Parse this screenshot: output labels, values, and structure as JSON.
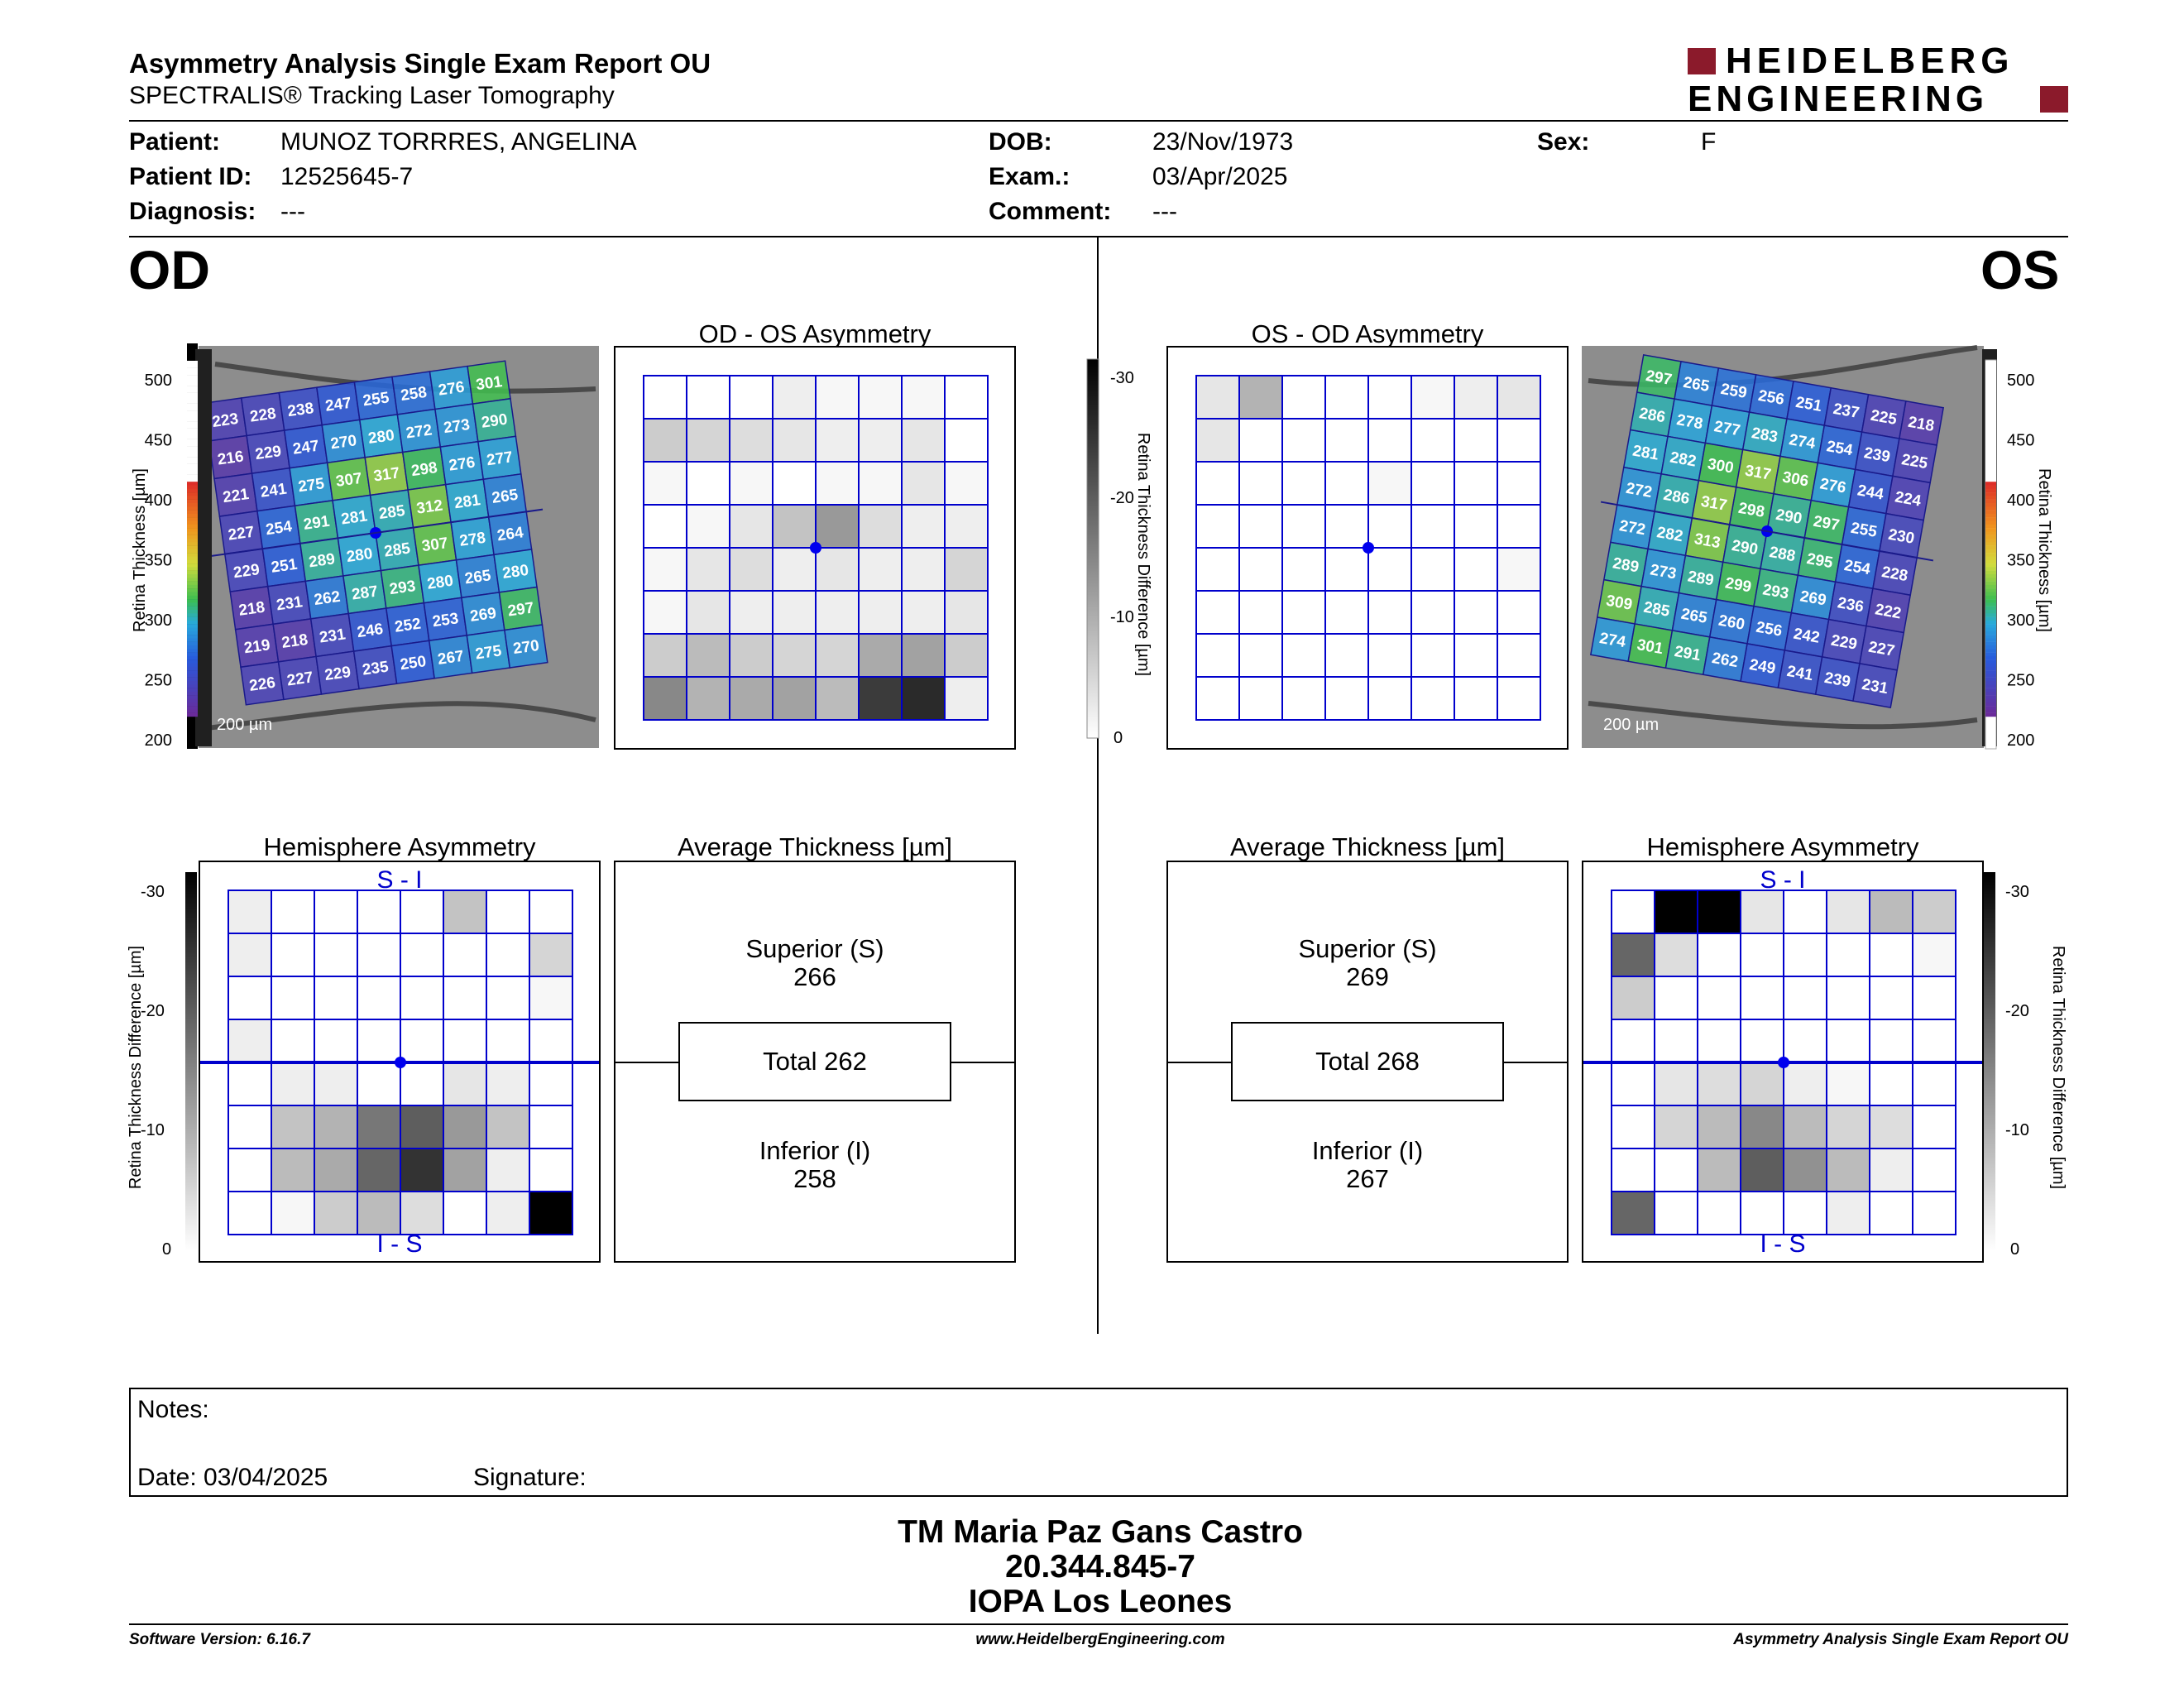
{
  "header": {
    "title": "Asymmetry Analysis Single Exam Report OU",
    "subtitle": "SPECTRALIS® Tracking Laser Tomography",
    "logo_line1": "HEIDELBERG",
    "logo_line2": "ENGINEERING",
    "brand_color": "#8b1a2b"
  },
  "patient": {
    "patient_label": "Patient:",
    "patient_value": "MUNOZ TORRRES, ANGELINA",
    "id_label": "Patient ID:",
    "id_value": "12525645-7",
    "diagnosis_label": "Diagnosis:",
    "diagnosis_value": "---",
    "dob_label": "DOB:",
    "dob_value": "23/Nov/1973",
    "exam_label": "Exam.:",
    "exam_value": "03/Apr/2025",
    "comment_label": "Comment:",
    "comment_value": "---",
    "sex_label": "Sex:",
    "sex_value": "F"
  },
  "od": {
    "eye_label": "OD",
    "asym_title": "OD - OS Asymmetry",
    "hemi_title": "Hemisphere Asymmetry",
    "avg_title": "Average Thickness [µm]",
    "scale_label": "200 µm",
    "superior_label": "Superior (S)",
    "superior_value": "266",
    "total_label": "Total 262",
    "inferior_label": "Inferior (I)",
    "inferior_value": "258",
    "si_label": "S - I",
    "is_label": "I - S",
    "thickness_grid": [
      [
        223,
        228,
        238,
        247,
        255,
        258,
        276,
        301
      ],
      [
        216,
        229,
        247,
        270,
        280,
        272,
        273,
        290
      ],
      [
        221,
        241,
        275,
        307,
        317,
        298,
        276,
        277
      ],
      [
        227,
        254,
        291,
        281,
        285,
        312,
        281,
        265
      ],
      [
        229,
        251,
        289,
        280,
        285,
        307,
        278,
        264
      ],
      [
        218,
        231,
        262,
        287,
        293,
        280,
        265,
        280
      ],
      [
        219,
        218,
        231,
        246,
        252,
        253,
        269,
        297
      ],
      [
        226,
        227,
        229,
        235,
        250,
        267,
        275,
        270
      ]
    ],
    "asym_grid": [
      [
        0,
        0,
        0,
        2,
        1,
        1,
        1,
        0
      ],
      [
        6,
        5,
        4,
        3,
        2,
        2,
        3,
        0
      ],
      [
        1,
        0,
        1,
        0,
        1,
        1,
        3,
        1
      ],
      [
        0,
        1,
        3,
        7,
        12,
        4,
        2,
        2
      ],
      [
        1,
        3,
        4,
        2,
        3,
        2,
        2,
        5
      ],
      [
        1,
        3,
        2,
        2,
        2,
        2,
        2,
        3
      ],
      [
        6,
        8,
        6,
        5,
        5,
        10,
        11,
        6
      ],
      [
        14,
        9,
        10,
        11,
        8,
        23,
        25,
        2
      ]
    ],
    "hemi_grid": [
      [
        2,
        0,
        0,
        0,
        0,
        7,
        0,
        0
      ],
      [
        2,
        0,
        0,
        0,
        0,
        0,
        0,
        5
      ],
      [
        0,
        0,
        0,
        0,
        0,
        0,
        0,
        1
      ],
      [
        2,
        0,
        0,
        0,
        0,
        0,
        0,
        0
      ],
      [
        0,
        2,
        2,
        0,
        0,
        3,
        2,
        0
      ],
      [
        0,
        7,
        9,
        16,
        19,
        12,
        7,
        0
      ],
      [
        0,
        8,
        10,
        18,
        24,
        11,
        2,
        0
      ],
      [
        0,
        1,
        6,
        8,
        4,
        0,
        2,
        30
      ]
    ]
  },
  "os": {
    "eye_label": "OS",
    "asym_title": "OS - OD Asymmetry",
    "hemi_title": "Hemisphere Asymmetry",
    "avg_title": "Average Thickness [µm]",
    "scale_label": "200 µm",
    "superior_label": "Superior (S)",
    "superior_value": "269",
    "total_label": "Total 268",
    "inferior_label": "Inferior (I)",
    "inferior_value": "267",
    "si_label": "S - I",
    "is_label": "I - S",
    "thickness_grid": [
      [
        297,
        265,
        259,
        256,
        251,
        237,
        225,
        218
      ],
      [
        286,
        278,
        277,
        283,
        274,
        254,
        239,
        225
      ],
      [
        281,
        282,
        300,
        317,
        306,
        276,
        244,
        224
      ],
      [
        272,
        286,
        317,
        298,
        290,
        297,
        255,
        230
      ],
      [
        272,
        282,
        313,
        290,
        288,
        295,
        254,
        228
      ],
      [
        289,
        273,
        289,
        299,
        293,
        269,
        236,
        222
      ],
      [
        309,
        285,
        265,
        260,
        256,
        242,
        229,
        227
      ],
      [
        274,
        301,
        291,
        262,
        249,
        241,
        239,
        231
      ]
    ],
    "asym_grid": [
      [
        3,
        9,
        0,
        0,
        0,
        1,
        2,
        3
      ],
      [
        3,
        0,
        0,
        0,
        0,
        0,
        0,
        0
      ],
      [
        0,
        0,
        0,
        0,
        1,
        0,
        0,
        0
      ],
      [
        0,
        0,
        0,
        0,
        0,
        0,
        0,
        0
      ],
      [
        0,
        0,
        0,
        0,
        0,
        0,
        0,
        1
      ],
      [
        0,
        0,
        0,
        0,
        0,
        0,
        0,
        0
      ],
      [
        0,
        0,
        0,
        0,
        0,
        0,
        0,
        0
      ],
      [
        0,
        0,
        0,
        0,
        0,
        0,
        0,
        0
      ]
    ],
    "hemi_grid": [
      [
        0,
        30,
        30,
        3,
        0,
        3,
        8,
        6
      ],
      [
        18,
        4,
        0,
        0,
        0,
        0,
        0,
        1
      ],
      [
        6,
        0,
        0,
        0,
        0,
        0,
        0,
        0
      ],
      [
        0,
        0,
        0,
        0,
        0,
        0,
        0,
        0
      ],
      [
        0,
        3,
        4,
        5,
        2,
        1,
        0,
        0
      ],
      [
        0,
        5,
        8,
        14,
        8,
        5,
        4,
        0
      ],
      [
        0,
        0,
        8,
        19,
        13,
        8,
        2,
        0
      ],
      [
        18,
        0,
        0,
        0,
        0,
        2,
        0,
        0
      ]
    ]
  },
  "colorbar": {
    "thickness_label": "Retina Thickness [µm]",
    "thickness_ticks": [
      "500",
      "450",
      "400",
      "350",
      "300",
      "250",
      "200"
    ],
    "diff_label": "Retina Thickness Difference [µm]",
    "diff_ticks": [
      "-30",
      "-20",
      "-10",
      "0"
    ]
  },
  "notes": {
    "notes_label": "Notes:",
    "date_label": "Date: 03/04/2025",
    "signature_label": "Signature:"
  },
  "signatory": {
    "name": "TM Maria Paz Gans Castro",
    "id": "20.344.845-7",
    "org": "IOPA Los Leones"
  },
  "footer": {
    "software": "Software Version: 6.16.7",
    "website": "www.HeidelbergEngineering.com",
    "report": "Asymmetry Analysis Single Exam Report OU"
  }
}
